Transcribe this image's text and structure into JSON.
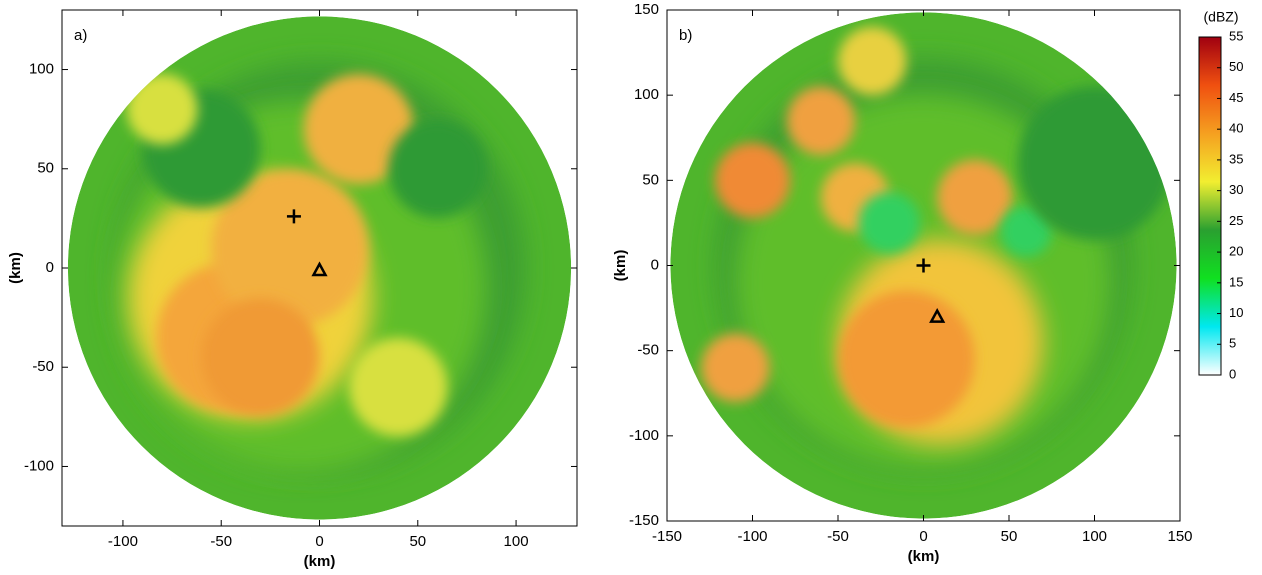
{
  "chart_data": [
    {
      "type": "radar",
      "panel_label": "a)",
      "xlabel": "(km)",
      "ylabel": "(km)",
      "xlim": [
        -131,
        131
      ],
      "ylim": [
        -130,
        130
      ],
      "xticks": [
        -100,
        -50,
        0,
        50,
        100
      ],
      "yticks": [
        -100,
        -50,
        0,
        50,
        100
      ],
      "radius": 128,
      "markers": [
        {
          "symbol": "plus",
          "x": -13,
          "y": 26
        },
        {
          "symbol": "triangle",
          "x": 0,
          "y": -1
        }
      ]
    },
    {
      "type": "radar",
      "panel_label": "b)",
      "xlabel": "(km)",
      "ylabel": "(km)",
      "xlim": [
        -150,
        150
      ],
      "ylim": [
        -150,
        150
      ],
      "xticks": [
        -150,
        -100,
        -50,
        0,
        50,
        100,
        150
      ],
      "yticks": [
        -150,
        -100,
        -50,
        0,
        50,
        100,
        150
      ],
      "radius": 148,
      "markers": [
        {
          "symbol": "plus",
          "x": 0,
          "y": 0
        },
        {
          "symbol": "triangle",
          "x": 8,
          "y": -30
        }
      ]
    },
    {
      "type": "colorbar",
      "title": "(dBZ)",
      "ylim": [
        0,
        55
      ],
      "yticks": [
        0,
        5,
        10,
        15,
        20,
        25,
        30,
        35,
        40,
        45,
        50,
        55
      ],
      "colors": [
        "#ffffff",
        "#00e8f0",
        "#10e020",
        "#2aa030",
        "#f2ee30",
        "#f5a020",
        "#f05010",
        "#a00010"
      ]
    }
  ]
}
